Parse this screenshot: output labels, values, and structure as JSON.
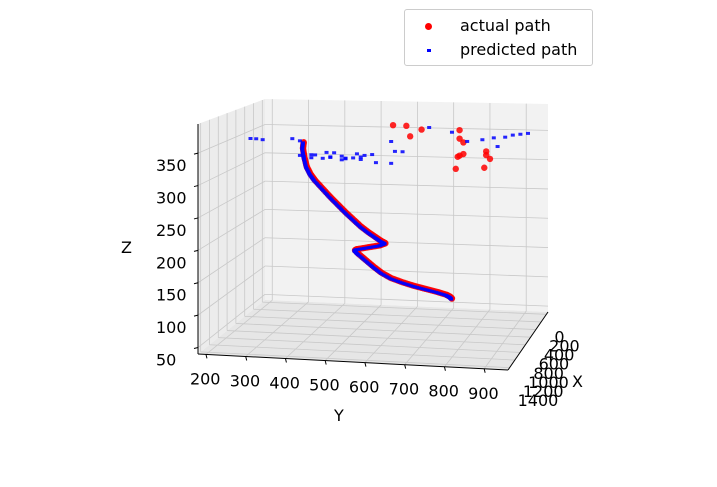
{
  "chart_data": {
    "type": "scatter",
    "projection": "3d",
    "xlabel": "X",
    "ylabel": "Y",
    "zlabel": "Z",
    "x_ticks": [
      "0",
      "200",
      "400",
      "600",
      "800",
      "1000",
      "1200",
      "1400"
    ],
    "y_ticks": [
      "200",
      "300",
      "400",
      "500",
      "600",
      "700",
      "800",
      "900"
    ],
    "z_ticks": [
      "50",
      "100",
      "150",
      "200",
      "250",
      "300",
      "350"
    ],
    "ylim": [
      180,
      960
    ],
    "zlim": [
      40,
      395
    ],
    "grid": true,
    "legend_position": "top-right",
    "colors": {
      "actual": "#ff0000",
      "predicted": "#0000ff",
      "pane": "#f2f2f2",
      "grid": "#c8c8c8"
    },
    "series": [
      {
        "name": "actual path",
        "marker": "circle",
        "trajectory": {
          "y": [
            370,
            368,
            372,
            378,
            388,
            400,
            420,
            440,
            460,
            480,
            500,
            520,
            540,
            560,
            575,
            585,
            570,
            540,
            510,
            505,
            515,
            535,
            555,
            575,
            600,
            630,
            660,
            690,
            720,
            745,
            755,
            760
          ],
          "z": [
            350,
            340,
            325,
            310,
            298,
            288,
            275,
            262,
            250,
            238,
            227,
            216,
            207,
            199,
            193,
            190,
            186,
            182,
            178,
            176,
            170,
            160,
            150,
            141,
            133,
            127,
            122,
            118,
            114,
            110,
            107,
            104
          ]
        },
        "scattered": {
          "y": [
            605,
            640,
            680,
            650,
            780,
            780,
            790,
            780,
            775,
            790,
            850,
            850,
            860,
            845,
            770
          ],
          "z": [
            385,
            385,
            380,
            368,
            382,
            368,
            362,
            340,
            338,
            343,
            349,
            343,
            337,
            322,
            318
          ]
        }
      },
      {
        "name": "predicted path",
        "marker": "square",
        "trajectory": {
          "y": [
            368,
            366,
            370,
            376,
            386,
            398,
            418,
            438,
            458,
            478,
            498,
            518,
            538,
            558,
            573,
            583,
            568,
            538,
            508,
            503,
            513,
            533,
            553,
            573,
            598,
            628,
            658,
            688,
            718,
            743,
            753,
            758
          ],
          "z": [
            349,
            339,
            324,
            309,
            297,
            287,
            274,
            261,
            249,
            237,
            226,
            215,
            206,
            198,
            192,
            189,
            185,
            181,
            177,
            175,
            169,
            159,
            149,
            140,
            132,
            126,
            121,
            117,
            113,
            109,
            106,
            103
          ]
        },
        "scattered": {
          "y": [
            230,
            245,
            262,
            340,
            360,
            390,
            430,
            440,
            450,
            470,
            480,
            510,
            520,
            530,
            550,
            600,
            610,
            630,
            700,
            760,
            800,
            840,
            870,
            880,
            900,
            920,
            940,
            960,
            360,
            370,
            390,
            400,
            420,
            440,
            470,
            480,
            500,
            520,
            560,
            600
          ],
          "z": [
            352,
            352,
            351,
            355,
            352,
            330,
            335,
            327,
            335,
            330,
            327,
            335,
            330,
            333,
            335,
            358,
            342,
            342,
            384,
            378,
            364,
            368,
            372,
            358,
            374,
            378,
            380,
            382,
            328,
            326,
            325,
            330,
            325,
            328,
            324,
            326,
            328,
            326,
            322,
            322
          ]
        }
      }
    ]
  },
  "legend": {
    "items": [
      {
        "label": "actual path"
      },
      {
        "label": "predicted path"
      }
    ]
  }
}
